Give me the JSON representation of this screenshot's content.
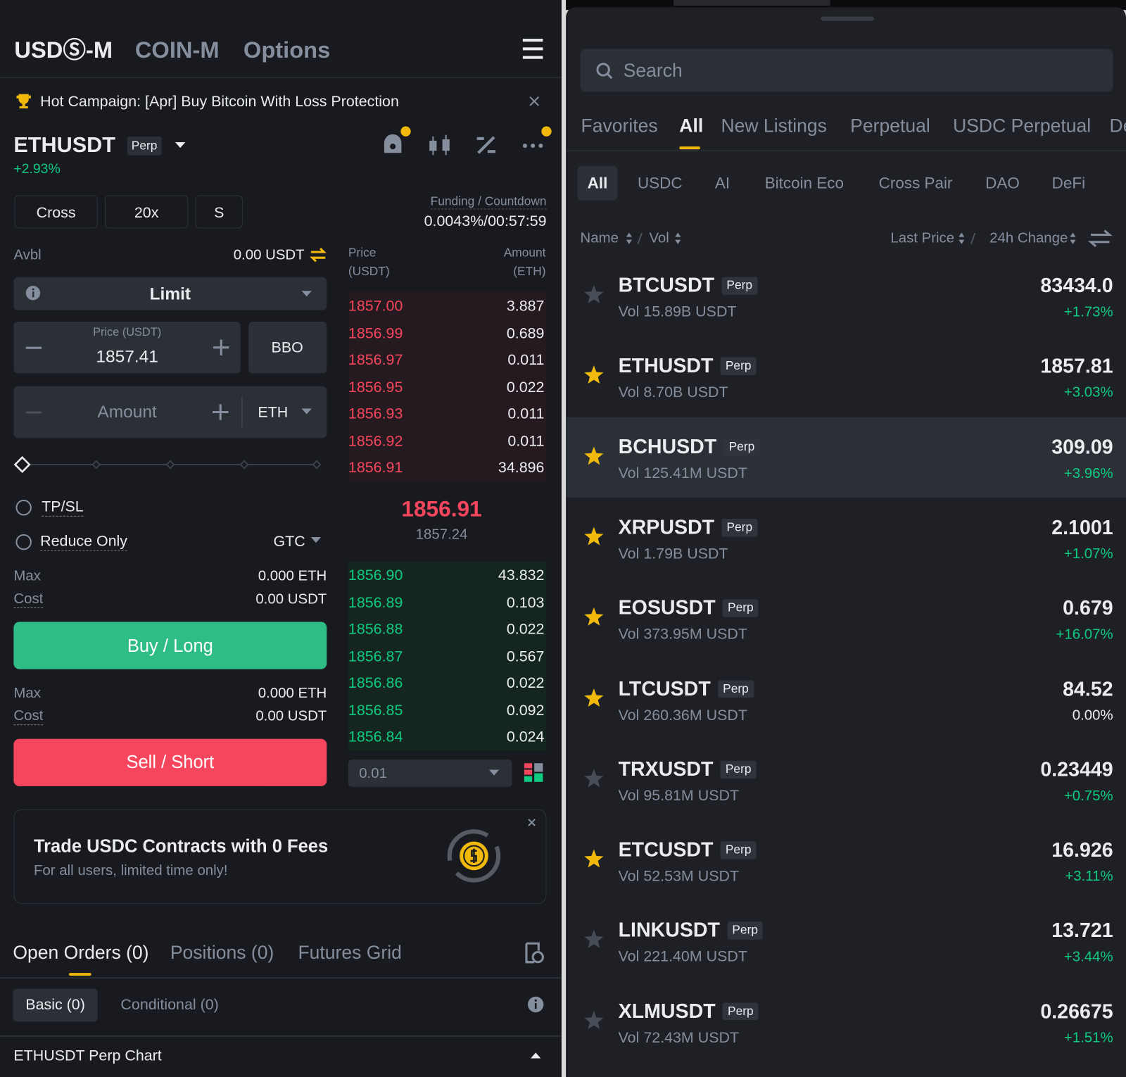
{
  "left": {
    "tabs": [
      "USDⓈ-M",
      "COIN-M",
      "Options"
    ],
    "campaign": "Hot Campaign: [Apr] Buy Bitcoin With Loss Protection",
    "symbol": "ETHUSDT",
    "symbol_tag": "Perp",
    "change": "+2.93%",
    "margin_buttons": [
      "Cross",
      "20x",
      "S"
    ],
    "funding_label": "Funding / Countdown",
    "funding_value": "0.0043%/00:57:59",
    "avbl_label": "Avbl",
    "avbl_value": "0.00 USDT",
    "order_type": "Limit",
    "price_label": "Price (USDT)",
    "price_value": "1857.41",
    "bbo": "BBO",
    "amount_placeholder": "Amount",
    "amount_unit": "ETH",
    "tpsl": "TP/SL",
    "reduce_only": "Reduce Only",
    "time_in_force": "GTC",
    "buy_info": [
      [
        "Max",
        "0.000 ETH"
      ],
      [
        "Cost",
        "0.00 USDT"
      ]
    ],
    "buy_button": "Buy / Long",
    "sell_info": [
      [
        "Max",
        "0.000 ETH"
      ],
      [
        "Cost",
        "0.00 USDT"
      ]
    ],
    "sell_button": "Sell / Short",
    "order_book": {
      "price_header": [
        "Price",
        "(USDT)"
      ],
      "amount_header": [
        "Amount",
        "(ETH)"
      ],
      "asks": [
        {
          "price": "1857.00",
          "amount": "3.887"
        },
        {
          "price": "1856.99",
          "amount": "0.689"
        },
        {
          "price": "1856.97",
          "amount": "0.011"
        },
        {
          "price": "1856.95",
          "amount": "0.022"
        },
        {
          "price": "1856.93",
          "amount": "0.011"
        },
        {
          "price": "1856.92",
          "amount": "0.011"
        },
        {
          "price": "1856.91",
          "amount": "34.896"
        }
      ],
      "last_price": "1856.91",
      "mark_price": "1857.24",
      "bids": [
        {
          "price": "1856.90",
          "amount": "43.832"
        },
        {
          "price": "1856.89",
          "amount": "0.103"
        },
        {
          "price": "1856.88",
          "amount": "0.022"
        },
        {
          "price": "1856.87",
          "amount": "0.567"
        },
        {
          "price": "1856.86",
          "amount": "0.022"
        },
        {
          "price": "1856.85",
          "amount": "0.092"
        },
        {
          "price": "1856.84",
          "amount": "0.024"
        }
      ],
      "precision": "0.01"
    },
    "promo": {
      "title": "Trade USDC Contracts with 0 Fees",
      "subtitle": "For all users, limited time only!"
    },
    "order_tabs": [
      "Open Orders (0)",
      "Positions (0)",
      "Futures Grid"
    ],
    "sub_tabs": [
      "Basic (0)",
      "Conditional (0)"
    ],
    "chart_bar": "ETHUSDT Perp Chart"
  },
  "right": {
    "search_placeholder": "Search",
    "tabs": [
      "Favorites",
      "All",
      "New Listings",
      "Perpetual",
      "USDC Perpetual",
      "De"
    ],
    "filters": [
      "All",
      "USDC",
      "AI",
      "Bitcoin Eco",
      "Cross Pair",
      "DAO",
      "DeFi"
    ],
    "columns": [
      "Name",
      "Vol",
      "Last Price",
      "24h Change"
    ],
    "markets": [
      {
        "symbol": "BTCUSDT",
        "tag": "Perp",
        "vol": "Vol 15.89B USDT",
        "price": "83434.0",
        "change": "+1.73%",
        "favorite": false
      },
      {
        "symbol": "ETHUSDT",
        "tag": "Perp",
        "vol": "Vol 8.70B USDT",
        "price": "1857.81",
        "change": "+3.03%",
        "favorite": true
      },
      {
        "symbol": "BCHUSDT",
        "tag": "Perp",
        "vol": "Vol 125.41M USDT",
        "price": "309.09",
        "change": "+3.96%",
        "favorite": true
      },
      {
        "symbol": "XRPUSDT",
        "tag": "Perp",
        "vol": "Vol 1.79B USDT",
        "price": "2.1001",
        "change": "+1.07%",
        "favorite": true
      },
      {
        "symbol": "EOSUSDT",
        "tag": "Perp",
        "vol": "Vol 373.95M USDT",
        "price": "0.679",
        "change": "+16.07%",
        "favorite": true
      },
      {
        "symbol": "LTCUSDT",
        "tag": "Perp",
        "vol": "Vol 260.36M USDT",
        "price": "84.52",
        "change": "0.00%",
        "favorite": true
      },
      {
        "symbol": "TRXUSDT",
        "tag": "Perp",
        "vol": "Vol 95.81M USDT",
        "price": "0.23449",
        "change": "+0.75%",
        "favorite": false
      },
      {
        "symbol": "ETCUSDT",
        "tag": "Perp",
        "vol": "Vol 52.53M USDT",
        "price": "16.926",
        "change": "+3.11%",
        "favorite": true
      },
      {
        "symbol": "LINKUSDT",
        "tag": "Perp",
        "vol": "Vol 221.40M USDT",
        "price": "13.721",
        "change": "+3.44%",
        "favorite": false
      },
      {
        "symbol": "XLMUSDT",
        "tag": "Perp",
        "vol": "Vol 72.43M USDT",
        "price": "0.26675",
        "change": "+1.51%",
        "favorite": false
      }
    ]
  }
}
